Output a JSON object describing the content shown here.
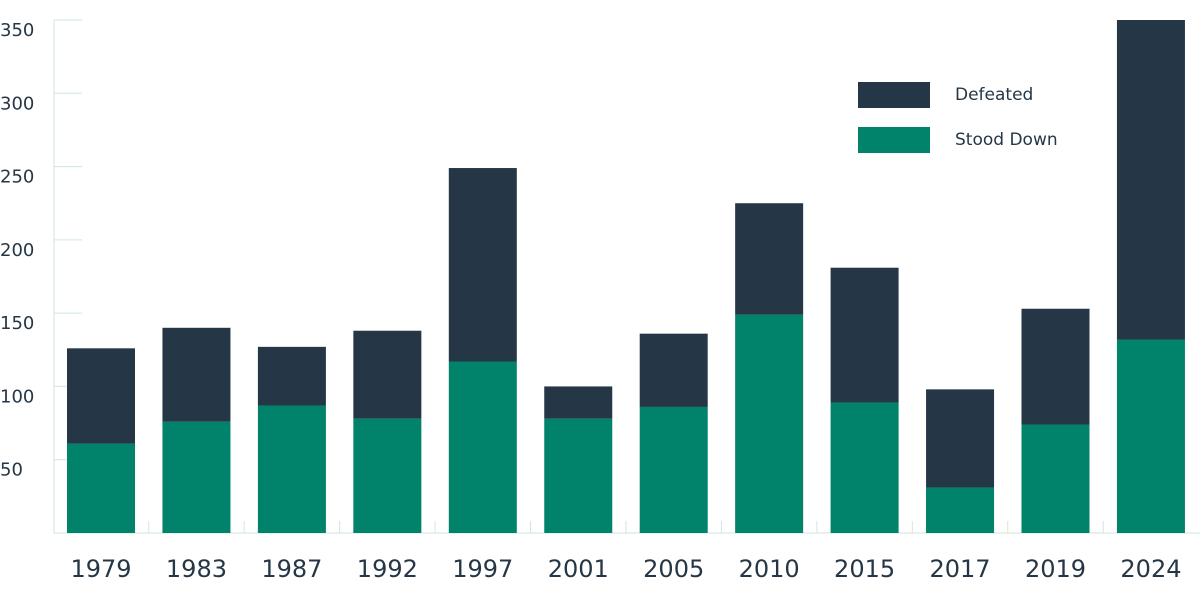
{
  "chart_data": {
    "type": "stacked-bar",
    "categories": [
      "1979",
      "1983",
      "1987",
      "1992",
      "1997",
      "2001",
      "2005",
      "2010",
      "2015",
      "2017",
      "2019",
      "2024"
    ],
    "series": [
      {
        "name": "Stood Down",
        "color": "#00826b",
        "values": [
          61,
          76,
          87,
          78,
          117,
          78,
          86,
          149,
          89,
          31,
          74,
          132
        ]
      },
      {
        "name": "Defeated",
        "color": "#253746",
        "values": [
          65,
          64,
          40,
          60,
          132,
          22,
          50,
          76,
          92,
          67,
          79,
          218
        ]
      }
    ],
    "ylim": [
      0,
      350
    ],
    "yticks": [
      50,
      100,
      150,
      200,
      250,
      300,
      350
    ],
    "legend": "top-right"
  }
}
